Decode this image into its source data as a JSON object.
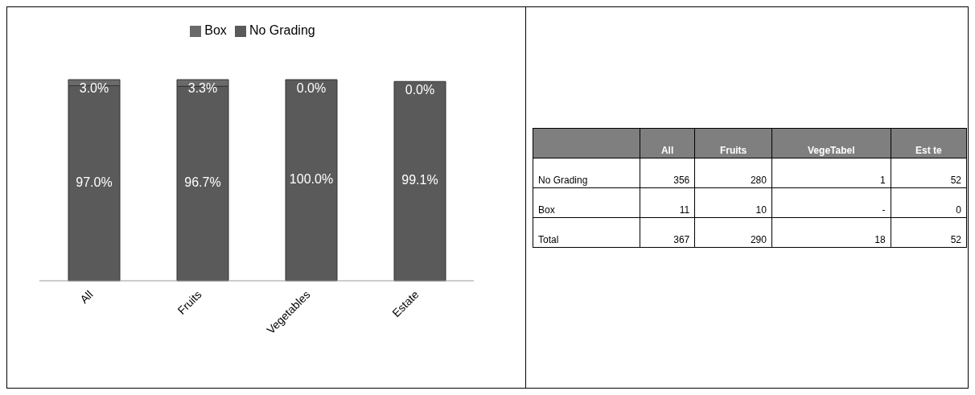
{
  "chart_data": [
    {
      "type": "bar",
      "stacked": true,
      "categories": [
        "All",
        "Fruits",
        "Vegetables",
        "Estate"
      ],
      "series": [
        {
          "name": "No Grading",
          "color": "#5a5a5a",
          "values": [
            97.0,
            96.7,
            100.0,
            99.1
          ],
          "value_labels": [
            "97.0%",
            "96.7%",
            "100.0%",
            "99.1%"
          ]
        },
        {
          "name": "Box",
          "color": "#6a6a6a",
          "values": [
            3.0,
            3.3,
            0.0,
            0.0
          ],
          "value_labels": [
            "3.0%",
            "3.3%",
            "0.0%",
            "0.0%"
          ]
        }
      ],
      "legend": "top",
      "tick_labels": "x"
    },
    {
      "type": "other",
      "categories": [
        null,
        "All",
        "Fruits",
        "VegeTabel",
        "Est  te"
      ],
      "y_categories": [
        "No Grading",
        "Box",
        "Total"
      ],
      "cell_labels": [
        [
          "356",
          "280",
          "1",
          "52"
        ],
        [
          "11",
          "10",
          "-",
          "0"
        ],
        [
          "367",
          "290",
          "18",
          "52"
        ]
      ]
    }
  ]
}
